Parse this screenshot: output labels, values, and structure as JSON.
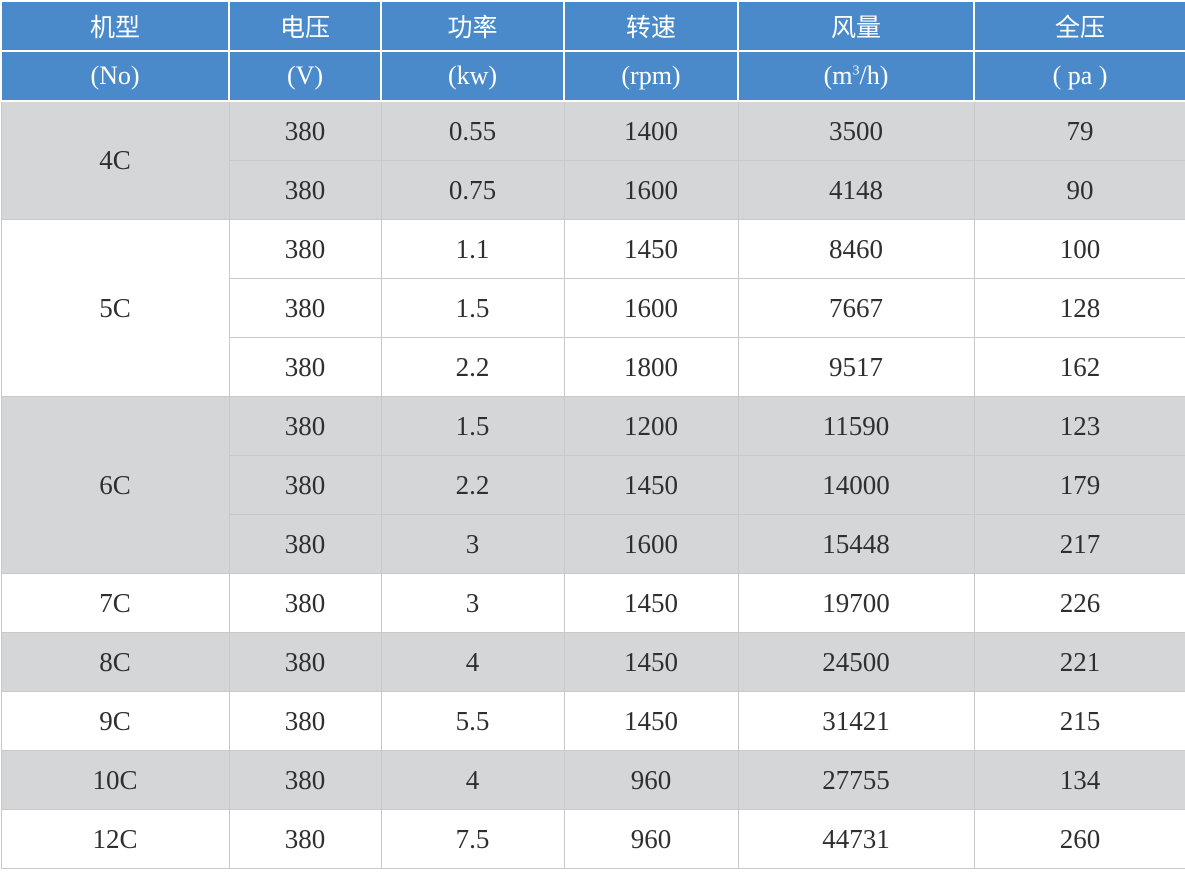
{
  "colors": {
    "header": "#4a8acb",
    "shaded_row": "#d5d6d8"
  },
  "header": {
    "names": [
      "机型",
      "电压",
      "功率",
      "转速",
      "风量",
      "全压"
    ],
    "units": [
      "(No)",
      "(V)",
      "(kw)",
      "(rpm)",
      "(m",
      "( pa )"
    ],
    "airflow_unit_sup": "3",
    "airflow_unit_tail": "/h)"
  },
  "groups": [
    {
      "model": "4C",
      "shaded": true,
      "rows": [
        [
          "380",
          "0.55",
          "1400",
          "3500",
          "79"
        ],
        [
          "380",
          "0.75",
          "1600",
          "4148",
          "90"
        ]
      ]
    },
    {
      "model": "5C",
      "shaded": false,
      "rows": [
        [
          "380",
          "1.1",
          "1450",
          "8460",
          "100"
        ],
        [
          "380",
          "1.5",
          "1600",
          "7667",
          "128"
        ],
        [
          "380",
          "2.2",
          "1800",
          "9517",
          "162"
        ]
      ]
    },
    {
      "model": "6C",
      "shaded": true,
      "rows": [
        [
          "380",
          "1.5",
          "1200",
          "11590",
          "123"
        ],
        [
          "380",
          "2.2",
          "1450",
          "14000",
          "179"
        ],
        [
          "380",
          "3",
          "1600",
          "15448",
          "217"
        ]
      ]
    },
    {
      "model": "7C",
      "shaded": false,
      "rows": [
        [
          "380",
          "3",
          "1450",
          "19700",
          "226"
        ]
      ]
    },
    {
      "model": "8C",
      "shaded": true,
      "rows": [
        [
          "380",
          "4",
          "1450",
          "24500",
          "221"
        ]
      ]
    },
    {
      "model": "9C",
      "shaded": false,
      "rows": [
        [
          "380",
          "5.5",
          "1450",
          "31421",
          "215"
        ]
      ]
    },
    {
      "model": "10C",
      "shaded": true,
      "rows": [
        [
          "380",
          "4",
          "960",
          "27755",
          "134"
        ]
      ]
    },
    {
      "model": "12C",
      "shaded": false,
      "rows": [
        [
          "380",
          "7.5",
          "960",
          "44731",
          "260"
        ]
      ]
    }
  ]
}
